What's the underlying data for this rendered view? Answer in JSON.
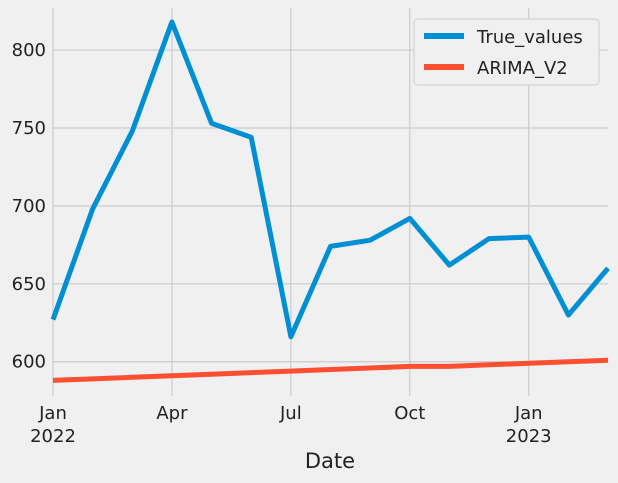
{
  "chart_data": {
    "type": "line",
    "title": "",
    "xlabel": "Date",
    "ylabel": "",
    "x": [
      "2022-01",
      "2022-02",
      "2022-03",
      "2022-04",
      "2022-05",
      "2022-06",
      "2022-07",
      "2022-08",
      "2022-09",
      "2022-10",
      "2022-11",
      "2022-12",
      "2023-01",
      "2023-02",
      "2023-03"
    ],
    "series": [
      {
        "name": "True_values",
        "color": "#008fd5",
        "values": [
          627,
          698,
          748,
          818,
          753,
          744,
          616,
          674,
          678,
          692,
          662,
          679,
          680,
          630,
          660
        ]
      },
      {
        "name": "ARIMA_V2",
        "color": "#fc4f30",
        "values": [
          588,
          589,
          590,
          591,
          592,
          593,
          594,
          595,
          596,
          597,
          597,
          598,
          599,
          600,
          601
        ]
      }
    ],
    "ylim": [
      578,
      827
    ],
    "yticks": [
      600,
      650,
      700,
      750,
      800
    ],
    "xticks": [
      {
        "index": 0,
        "label": "Jan",
        "sublabel": "2022"
      },
      {
        "index": 3,
        "label": "Apr",
        "sublabel": ""
      },
      {
        "index": 6,
        "label": "Jul",
        "sublabel": ""
      },
      {
        "index": 9,
        "label": "Oct",
        "sublabel": ""
      },
      {
        "index": 12,
        "label": "Jan",
        "sublabel": "2023"
      }
    ],
    "grid": true,
    "legend_position": "top-right",
    "background": "#f0f0f0",
    "grid_color": "#cbcbcb"
  }
}
